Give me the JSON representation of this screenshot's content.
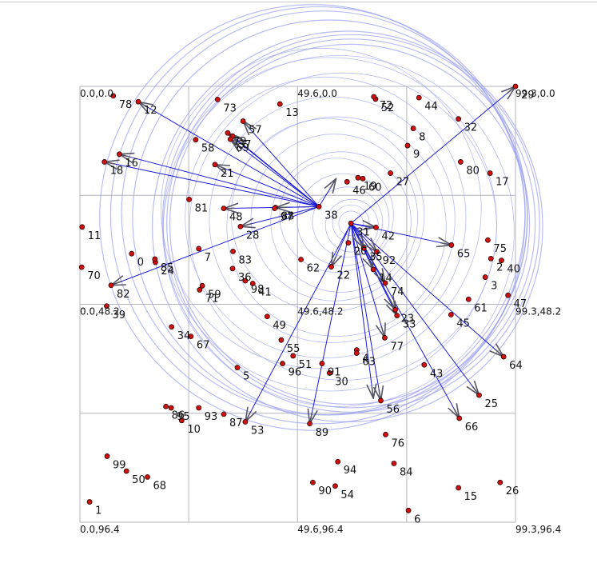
{
  "colors": {
    "grid": "#b4b4bc",
    "circle": "#9aa0ee",
    "arrow": "#1a1ad6",
    "arrowhead": "#555566",
    "point_fill": "#d11010",
    "point_stroke": "#2a0000",
    "text": "#111111"
  },
  "chart_data": {
    "type": "scatter",
    "xlim": [
      0.0,
      99.3
    ],
    "ylim": [
      0.0,
      96.4
    ],
    "y_inverted": true,
    "grid_x": [
      0.0,
      24.8,
      49.6,
      74.5,
      99.3
    ],
    "grid_y": [
      0.0,
      24.1,
      48.2,
      72.3,
      96.4
    ],
    "corner_labels": [
      {
        "x": 0.0,
        "y": 0.0,
        "text": "0.0,0.0"
      },
      {
        "x": 49.6,
        "y": 0.0,
        "text": "49.6,0.0"
      },
      {
        "x": 99.3,
        "y": 0.0,
        "text": "99.3,0.0"
      },
      {
        "x": 0.0,
        "y": 48.2,
        "text": "0.0,48.2"
      },
      {
        "x": 49.6,
        "y": 48.2,
        "text": "49.6,48.2"
      },
      {
        "x": 99.3,
        "y": 48.2,
        "text": "99.3,48.2"
      },
      {
        "x": 0.0,
        "y": 96.4,
        "text": "0.0,96.4"
      },
      {
        "x": 49.6,
        "y": 96.4,
        "text": "49.6,96.4"
      },
      {
        "x": 99.3,
        "y": 96.4,
        "text": "99.3,96.4"
      }
    ],
    "points": [
      {
        "id": "0",
        "x": 11.8,
        "y": 37.0
      },
      {
        "id": "1",
        "x": 2.2,
        "y": 91.9
      },
      {
        "id": "2",
        "x": 93.7,
        "y": 38.1
      },
      {
        "id": "3",
        "x": 92.4,
        "y": 42.2
      },
      {
        "id": "4",
        "x": 63.1,
        "y": 58.3
      },
      {
        "id": "5",
        "x": 35.9,
        "y": 62.2
      },
      {
        "id": "6",
        "x": 74.9,
        "y": 93.8
      },
      {
        "id": "7",
        "x": 27.1,
        "y": 35.9
      },
      {
        "id": "8",
        "x": 76.0,
        "y": 9.3
      },
      {
        "id": "9",
        "x": 74.7,
        "y": 13.1
      },
      {
        "id": "10",
        "x": 23.2,
        "y": 73.9
      },
      {
        "id": "11",
        "x": 0.5,
        "y": 31.1
      },
      {
        "id": "12",
        "x": 13.3,
        "y": 3.4
      },
      {
        "id": "13",
        "x": 45.6,
        "y": 3.9
      },
      {
        "id": "14",
        "x": 66.9,
        "y": 40.5
      },
      {
        "id": "15",
        "x": 86.3,
        "y": 88.8
      },
      {
        "id": "16",
        "x": 9.0,
        "y": 15.0
      },
      {
        "id": "17",
        "x": 93.5,
        "y": 19.2
      },
      {
        "id": "18",
        "x": 5.6,
        "y": 16.7
      },
      {
        "id": "19",
        "x": 63.4,
        "y": 20.2
      },
      {
        "id": "20",
        "x": 61.2,
        "y": 34.6
      },
      {
        "id": "21",
        "x": 30.8,
        "y": 17.3
      },
      {
        "id": "22",
        "x": 57.3,
        "y": 39.9
      },
      {
        "id": "23",
        "x": 71.9,
        "y": 49.4
      },
      {
        "id": "24",
        "x": 17.2,
        "y": 38.9
      },
      {
        "id": "25",
        "x": 91.0,
        "y": 68.3
      },
      {
        "id": "26",
        "x": 95.8,
        "y": 87.6
      },
      {
        "id": "27",
        "x": 70.8,
        "y": 19.2
      },
      {
        "id": "28",
        "x": 36.6,
        "y": 31.0
      },
      {
        "id": "29",
        "x": 99.3,
        "y": 0.0
      },
      {
        "id": "30",
        "x": 56.9,
        "y": 63.4
      },
      {
        "id": "31",
        "x": 61.8,
        "y": 30.3
      },
      {
        "id": "32",
        "x": 86.3,
        "y": 7.2
      },
      {
        "id": "33",
        "x": 72.3,
        "y": 50.7
      },
      {
        "id": "34",
        "x": 20.9,
        "y": 53.2
      },
      {
        "id": "35",
        "x": 64.7,
        "y": 35.8
      },
      {
        "id": "36",
        "x": 34.8,
        "y": 40.3
      },
      {
        "id": "37",
        "x": 34.8,
        "y": 11.0
      },
      {
        "id": "38",
        "x": 54.5,
        "y": 26.6
      },
      {
        "id": "39",
        "x": 6.1,
        "y": 48.6
      },
      {
        "id": "40",
        "x": 96.1,
        "y": 38.5
      },
      {
        "id": "41",
        "x": 39.4,
        "y": 43.6
      },
      {
        "id": "42",
        "x": 67.5,
        "y": 31.2
      },
      {
        "id": "43",
        "x": 78.5,
        "y": 61.6
      },
      {
        "id": "44",
        "x": 77.3,
        "y": 2.5
      },
      {
        "id": "45",
        "x": 84.6,
        "y": 50.5
      },
      {
        "id": "46",
        "x": 60.9,
        "y": 21.1
      },
      {
        "id": "47",
        "x": 97.6,
        "y": 46.2
      },
      {
        "id": "48",
        "x": 32.8,
        "y": 27.0
      },
      {
        "id": "49",
        "x": 42.7,
        "y": 50.9
      },
      {
        "id": "50",
        "x": 10.6,
        "y": 85.1
      },
      {
        "id": "51",
        "x": 48.6,
        "y": 59.6
      },
      {
        "id": "52",
        "x": 67.4,
        "y": 2.8
      },
      {
        "id": "53",
        "x": 37.7,
        "y": 74.2
      },
      {
        "id": "54",
        "x": 58.2,
        "y": 88.4
      },
      {
        "id": "55",
        "x": 45.9,
        "y": 56.1
      },
      {
        "id": "56",
        "x": 68.6,
        "y": 69.5
      },
      {
        "id": "57",
        "x": 37.2,
        "y": 7.7
      },
      {
        "id": "58",
        "x": 26.4,
        "y": 11.8
      },
      {
        "id": "59",
        "x": 27.9,
        "y": 44.1
      },
      {
        "id": "60",
        "x": 64.5,
        "y": 20.4
      },
      {
        "id": "61",
        "x": 88.6,
        "y": 47.1
      },
      {
        "id": "62",
        "x": 50.4,
        "y": 38.3
      },
      {
        "id": "63",
        "x": 63.1,
        "y": 59.0
      },
      {
        "id": "64",
        "x": 96.6,
        "y": 59.8
      },
      {
        "id": "65",
        "x": 84.7,
        "y": 35.1
      },
      {
        "id": "66",
        "x": 86.5,
        "y": 73.4
      },
      {
        "id": "67",
        "x": 25.3,
        "y": 55.3
      },
      {
        "id": "68",
        "x": 15.4,
        "y": 86.4
      },
      {
        "id": "69",
        "x": 34.3,
        "y": 11.7
      },
      {
        "id": "70",
        "x": 0.4,
        "y": 40.0
      },
      {
        "id": "71",
        "x": 27.3,
        "y": 45.0
      },
      {
        "id": "72",
        "x": 67.0,
        "y": 2.3
      },
      {
        "id": "73",
        "x": 31.4,
        "y": 2.9
      },
      {
        "id": "74",
        "x": 69.6,
        "y": 43.5
      },
      {
        "id": "75",
        "x": 93.0,
        "y": 34.0
      },
      {
        "id": "76",
        "x": 69.7,
        "y": 77.0
      },
      {
        "id": "77",
        "x": 69.5,
        "y": 55.6
      },
      {
        "id": "78",
        "x": 7.6,
        "y": 2.1
      },
      {
        "id": "79",
        "x": 33.7,
        "y": 10.3
      },
      {
        "id": "80",
        "x": 86.8,
        "y": 16.7
      },
      {
        "id": "81",
        "x": 24.9,
        "y": 25.0
      },
      {
        "id": "82",
        "x": 7.1,
        "y": 44.0
      },
      {
        "id": "83",
        "x": 34.9,
        "y": 36.5
      },
      {
        "id": "84",
        "x": 71.6,
        "y": 83.4
      },
      {
        "id": "85",
        "x": 17.1,
        "y": 38.2
      },
      {
        "id": "86",
        "x": 19.6,
        "y": 70.8
      },
      {
        "id": "87",
        "x": 32.8,
        "y": 72.5
      },
      {
        "id": "88",
        "x": 44.6,
        "y": 26.8
      },
      {
        "id": "89",
        "x": 52.4,
        "y": 74.6
      },
      {
        "id": "90",
        "x": 53.1,
        "y": 87.6
      },
      {
        "id": "91",
        "x": 55.2,
        "y": 61.3
      },
      {
        "id": "92",
        "x": 67.7,
        "y": 36.6
      },
      {
        "id": "93",
        "x": 27.1,
        "y": 71.1
      },
      {
        "id": "94",
        "x": 58.8,
        "y": 83.0
      },
      {
        "id": "95",
        "x": 20.8,
        "y": 71.1
      },
      {
        "id": "96",
        "x": 46.2,
        "y": 61.3
      },
      {
        "id": "97",
        "x": 44.4,
        "y": 27.0
      },
      {
        "id": "98",
        "x": 37.7,
        "y": 43.0
      },
      {
        "id": "99",
        "x": 6.2,
        "y": 81.8
      }
    ],
    "arrow_sources": [
      {
        "x": 54.5,
        "y": 26.6
      },
      {
        "x": 61.8,
        "y": 30.3
      }
    ],
    "arrows": [
      {
        "from": 0,
        "x": 13.3,
        "y": 3.4
      },
      {
        "from": 0,
        "x": 9.0,
        "y": 15.0
      },
      {
        "from": 0,
        "x": 5.6,
        "y": 16.7
      },
      {
        "from": 0,
        "x": 37.2,
        "y": 7.7
      },
      {
        "from": 0,
        "x": 34.8,
        "y": 11.0
      },
      {
        "from": 0,
        "x": 34.3,
        "y": 11.7
      },
      {
        "from": 0,
        "x": 33.7,
        "y": 10.3
      },
      {
        "from": 0,
        "x": 30.8,
        "y": 17.3
      },
      {
        "from": 0,
        "x": 32.8,
        "y": 27.0
      },
      {
        "from": 0,
        "x": 36.6,
        "y": 31.0
      },
      {
        "from": 0,
        "x": 44.6,
        "y": 26.8
      },
      {
        "from": 0,
        "x": 7.1,
        "y": 44.0
      },
      {
        "from": 0,
        "x": 58.4,
        "y": 20.4
      },
      {
        "from": 1,
        "x": 99.3,
        "y": 0.0
      },
      {
        "from": 1,
        "x": 84.7,
        "y": 35.1
      },
      {
        "from": 1,
        "x": 96.6,
        "y": 59.8
      },
      {
        "from": 1,
        "x": 91.0,
        "y": 68.3
      },
      {
        "from": 1,
        "x": 86.5,
        "y": 73.4
      },
      {
        "from": 1,
        "x": 68.6,
        "y": 69.5
      },
      {
        "from": 1,
        "x": 66.9,
        "y": 69.0
      },
      {
        "from": 1,
        "x": 52.4,
        "y": 74.6
      },
      {
        "from": 1,
        "x": 37.7,
        "y": 74.2
      },
      {
        "from": 1,
        "x": 69.5,
        "y": 55.6
      },
      {
        "from": 1,
        "x": 72.3,
        "y": 50.7
      },
      {
        "from": 1,
        "x": 71.9,
        "y": 49.4
      },
      {
        "from": 1,
        "x": 69.6,
        "y": 43.5
      },
      {
        "from": 1,
        "x": 67.5,
        "y": 31.2
      },
      {
        "from": 1,
        "x": 66.9,
        "y": 40.5
      },
      {
        "from": 1,
        "x": 64.7,
        "y": 35.8
      },
      {
        "from": 1,
        "x": 57.3,
        "y": 39.9
      },
      {
        "from": 1,
        "x": 67.7,
        "y": 36.6
      }
    ],
    "circles": [
      {
        "cx": 61.8,
        "cy": 30.3,
        "r": 43.0
      },
      {
        "cx": 61.8,
        "cy": 30.3,
        "r": 42.0
      },
      {
        "cx": 61.5,
        "cy": 30.5,
        "r": 41.0
      },
      {
        "cx": 61.0,
        "cy": 31.0,
        "r": 44.5
      },
      {
        "cx": 57.0,
        "cy": 29.0,
        "r": 45.0
      },
      {
        "cx": 55.5,
        "cy": 28.0,
        "r": 46.0
      },
      {
        "cx": 54.5,
        "cy": 28.5,
        "r": 47.5
      },
      {
        "cx": 53.0,
        "cy": 29.0,
        "r": 48.5
      },
      {
        "cx": 57.0,
        "cy": 30.5,
        "r": 38.0
      },
      {
        "cx": 60.0,
        "cy": 31.0,
        "r": 35.0
      },
      {
        "cx": 56.0,
        "cy": 29.0,
        "r": 32.0
      },
      {
        "cx": 57.5,
        "cy": 29.5,
        "r": 28.0
      },
      {
        "cx": 58.5,
        "cy": 31.0,
        "r": 25.0
      },
      {
        "cx": 56.5,
        "cy": 28.5,
        "r": 22.0
      },
      {
        "cx": 58.0,
        "cy": 29.0,
        "r": 19.0
      },
      {
        "cx": 59.5,
        "cy": 30.0,
        "r": 16.0
      },
      {
        "cx": 58.5,
        "cy": 28.5,
        "r": 13.0
      },
      {
        "cx": 60.0,
        "cy": 29.5,
        "r": 10.5
      },
      {
        "cx": 61.0,
        "cy": 30.0,
        "r": 8.0
      },
      {
        "cx": 62.0,
        "cy": 30.8,
        "r": 6.0
      },
      {
        "cx": 61.8,
        "cy": 30.3,
        "r": 4.2
      },
      {
        "cx": 61.8,
        "cy": 30.3,
        "r": 2.8
      },
      {
        "cx": 55.0,
        "cy": 27.0,
        "r": 36.5
      },
      {
        "cx": 59.0,
        "cy": 32.0,
        "r": 40.0
      }
    ]
  }
}
